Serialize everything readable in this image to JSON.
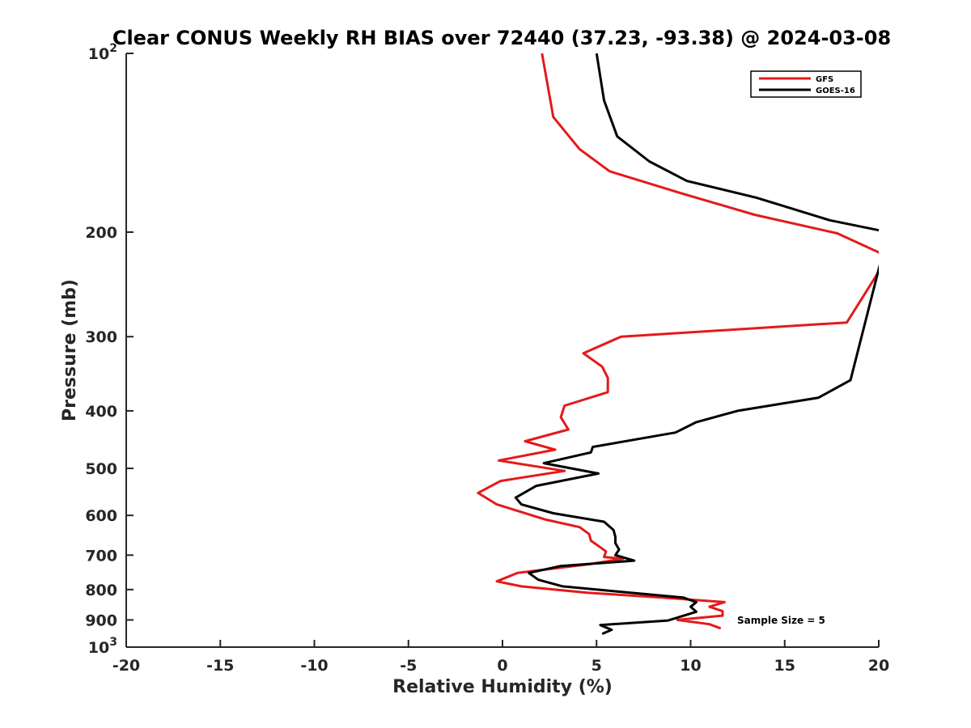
{
  "chart_data": {
    "type": "line",
    "title": "Clear CONUS Weekly RH BIAS over 72440 (37.23, -93.38) @ 2024-03-08",
    "xlabel": "Relative Humidity (%)",
    "ylabel": "Pressure (mb)",
    "xlim": [
      -20,
      20
    ],
    "ylim": [
      100,
      1000
    ],
    "y_scale": "log",
    "y_reversed": true,
    "grid": false,
    "legend_position": "top-right",
    "annotation": "Sample Size = 5",
    "x_ticks": [
      "-20",
      "-15",
      "-10",
      "-5",
      "0",
      "5",
      "10",
      "15",
      "20"
    ],
    "y_ticks": [
      {
        "base": "10",
        "exp": "2",
        "value": 100
      },
      {
        "base": "200",
        "exp": "",
        "value": 200
      },
      {
        "base": "300",
        "exp": "",
        "value": 300
      },
      {
        "base": "400",
        "exp": "",
        "value": 400
      },
      {
        "base": "500",
        "exp": "",
        "value": 500
      },
      {
        "base": "600",
        "exp": "",
        "value": 600
      },
      {
        "base": "700",
        "exp": "",
        "value": 700
      },
      {
        "base": "800",
        "exp": "",
        "value": 800
      },
      {
        "base": "900",
        "exp": "",
        "value": 900
      },
      {
        "base": "10",
        "exp": "3",
        "value": 1000
      }
    ],
    "series": [
      {
        "name": "GFS",
        "color": "#e41a1a",
        "x": [
          2.1,
          2.7,
          4.1,
          5.7,
          9.5,
          13.4,
          17.8,
          20.5,
          18.3,
          6.3,
          4.3,
          5.3,
          5.6,
          5.6,
          3.3,
          3.1,
          3.5,
          1.2,
          2.8,
          -0.2,
          3.3,
          -0.1,
          -1.3,
          -0.3,
          2.3,
          4.1,
          4.6,
          4.7,
          5.0,
          5.5,
          5.4,
          6.4,
          4.6,
          0.8,
          -0.3,
          1.0,
          4.5,
          8.5,
          11.8,
          11.0,
          11.7,
          11.7,
          9.3,
          11.0,
          11.6
        ],
        "y": [
          100,
          128,
          145,
          158,
          172,
          187,
          201,
          220,
          284,
          300,
          320,
          337,
          352,
          372,
          392,
          410,
          430,
          450,
          465,
          485,
          505,
          525,
          550,
          575,
          610,
          628,
          645,
          662,
          672,
          690,
          705,
          710,
          725,
          750,
          775,
          790,
          810,
          825,
          840,
          855,
          870,
          885,
          900,
          915,
          930
        ]
      },
      {
        "name": "GOES-16",
        "color": "#000000",
        "x": [
          5.0,
          5.4,
          6.1,
          7.8,
          9.8,
          13.5,
          17.4,
          20.5,
          18.5,
          16.8,
          12.5,
          10.3,
          9.2,
          4.8,
          4.7,
          2.2,
          5.1,
          1.8,
          0.7,
          1.0,
          2.7,
          5.4,
          5.9,
          6.0,
          6.0,
          6.2,
          6.0,
          7.0,
          3.1,
          1.4,
          1.9,
          3.2,
          6.8,
          9.6,
          10.3,
          10.0,
          10.3,
          9.5,
          8.8,
          5.2,
          5.8,
          5.3
        ],
        "y": [
          100,
          120,
          138,
          152,
          164,
          175,
          191,
          200,
          355,
          380,
          400,
          418,
          435,
          460,
          470,
          490,
          510,
          535,
          560,
          575,
          595,
          615,
          635,
          652,
          668,
          685,
          700,
          715,
          730,
          750,
          770,
          790,
          810,
          825,
          840,
          855,
          872,
          888,
          902,
          918,
          935,
          950
        ]
      }
    ]
  }
}
